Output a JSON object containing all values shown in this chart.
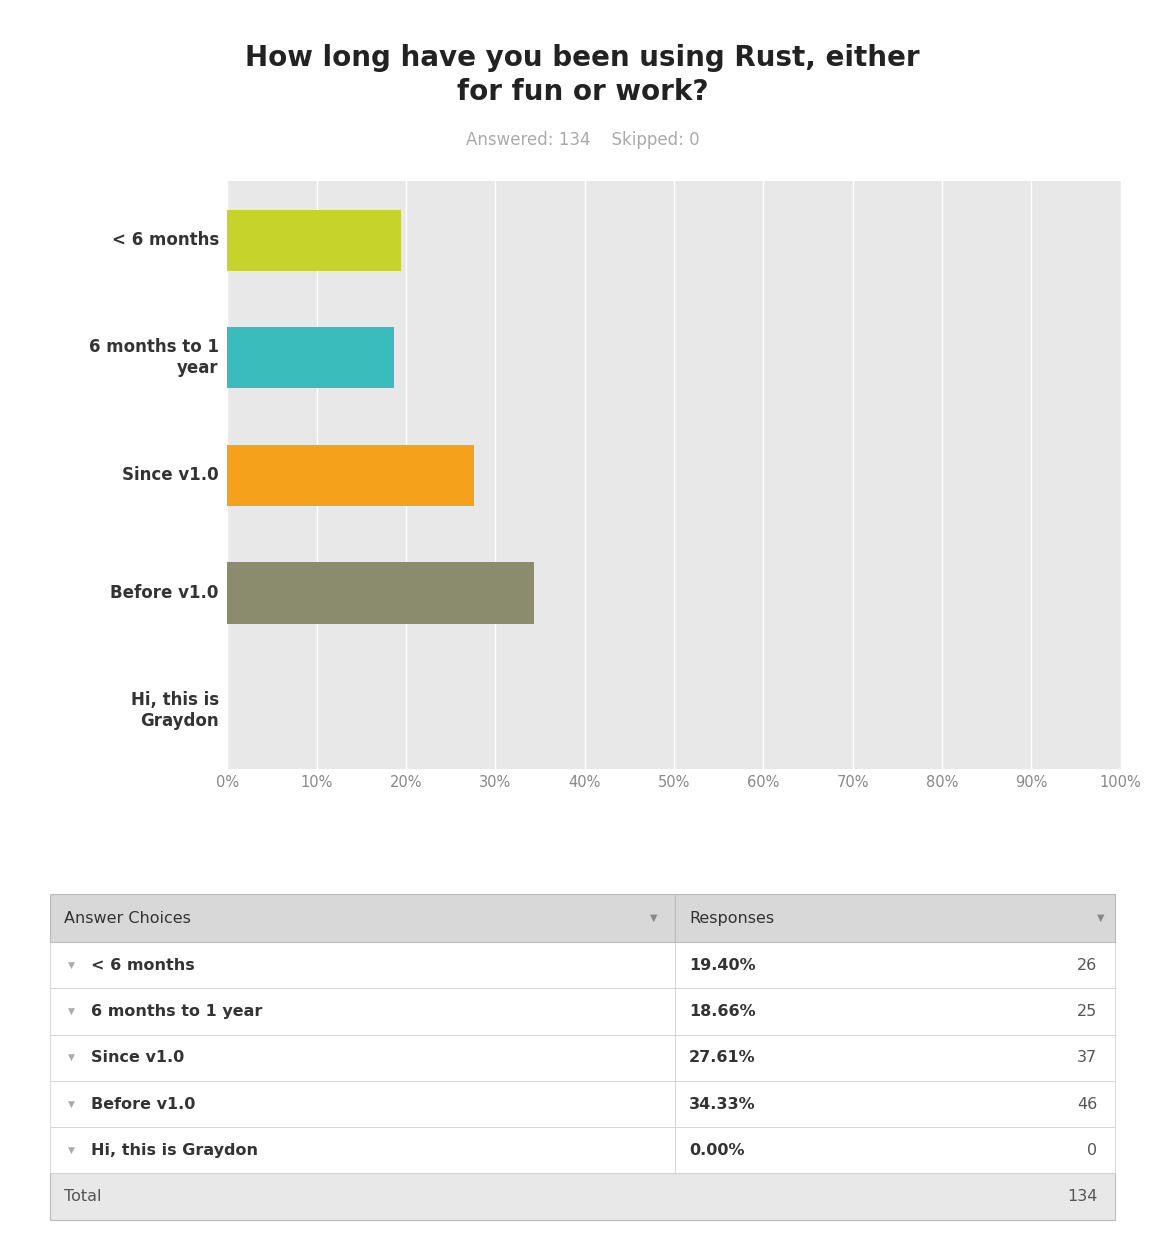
{
  "title": "How long have you been using Rust, either\nfor fun or work?",
  "subtitle": "Answered: 134    Skipped: 0",
  "categories": [
    "< 6 months",
    "6 months to 1\nyear",
    "Since v1.0",
    "Before v1.0",
    "Hi, this is\nGraydon"
  ],
  "values": [
    19.4,
    18.66,
    27.61,
    34.33,
    0.0
  ],
  "bar_colors": [
    "#c5d32a",
    "#3bbcbc",
    "#f5a11c",
    "#8b8b6e",
    "#cccccc"
  ],
  "title_fontsize": 20,
  "subtitle_fontsize": 12,
  "subtitle_color": "#aaaaaa",
  "title_color": "#222222",
  "axis_bg_color": "#e8e8e8",
  "bar_height": 0.52,
  "xlim": [
    0,
    100
  ],
  "xtick_labels": [
    "0%",
    "10%",
    "20%",
    "30%",
    "40%",
    "50%",
    "60%",
    "70%",
    "80%",
    "90%",
    "100%"
  ],
  "xtick_values": [
    0,
    10,
    20,
    30,
    40,
    50,
    60,
    70,
    80,
    90,
    100
  ],
  "ylabel_color": "#333333",
  "ylabel_fontsize": 12,
  "table_header_bg": "#d8d8d8",
  "table_row_bg": "#ffffff",
  "table_total_bg": "#e8e8e8",
  "table_border_color": "#cccccc",
  "table_categories": [
    "< 6 months",
    "6 months to 1 year",
    "Since v1.0",
    "Before v1.0",
    "Hi, this is Graydon"
  ],
  "table_percentages": [
    "19.40%",
    "18.66%",
    "27.61%",
    "34.33%",
    "0.00%"
  ],
  "table_counts": [
    "26",
    "25",
    "37",
    "46",
    "0"
  ],
  "table_total": "134",
  "grid_color": "#ffffff",
  "tick_color": "#888888"
}
